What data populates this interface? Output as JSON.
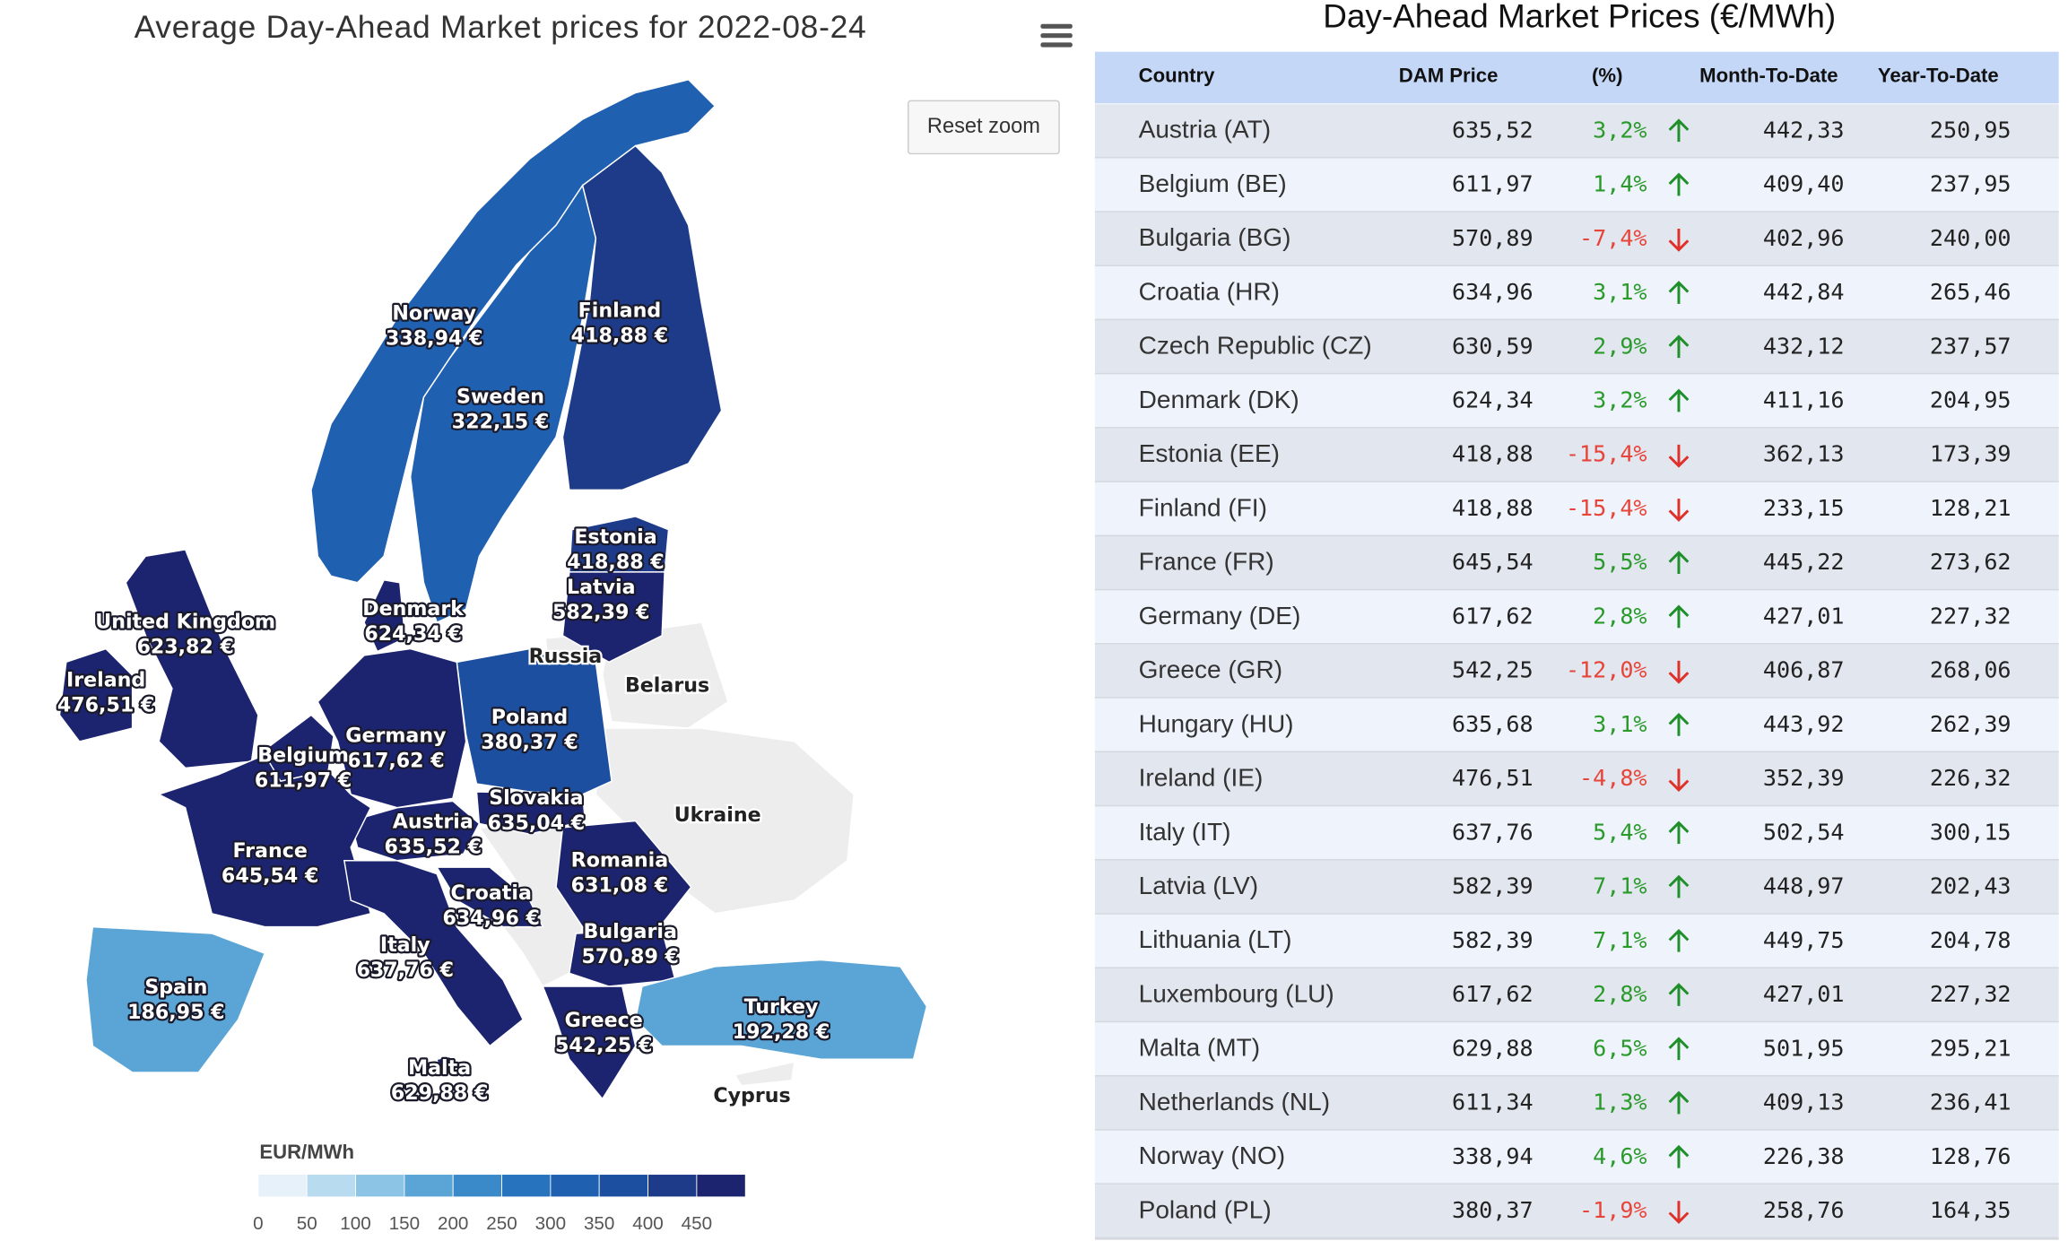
{
  "map": {
    "title": "Average Day-Ahead Market prices for 2022-08-24",
    "reset_button": "Reset zoom",
    "regions": [
      {
        "name": "Norway",
        "value": 338.94,
        "value_label": "338,94 €"
      },
      {
        "name": "Finland",
        "value": 418.88,
        "value_label": "418,88 €"
      },
      {
        "name": "Sweden",
        "value": 322.15,
        "value_label": "322,15 €"
      },
      {
        "name": "Estonia",
        "value": 418.88,
        "value_label": "418,88 €"
      },
      {
        "name": "Latvia",
        "value": 582.39,
        "value_label": "582,39 €"
      },
      {
        "name": "Denmark",
        "value": 624.34,
        "value_label": "624,34 €"
      },
      {
        "name": "United Kingdom",
        "value": 623.82,
        "value_label": "623,82 €"
      },
      {
        "name": "Ireland",
        "value": 476.51,
        "value_label": "476,51 €"
      },
      {
        "name": "Poland",
        "value": 380.37,
        "value_label": "380,37 €"
      },
      {
        "name": "Germany",
        "value": 617.62,
        "value_label": "617,62 €"
      },
      {
        "name": "Belgium",
        "value": 611.97,
        "value_label": "611,97 €"
      },
      {
        "name": "Slovakia",
        "value": 635.04,
        "value_label": "635,04 €"
      },
      {
        "name": "Austria",
        "value": 635.52,
        "value_label": "635,52 €"
      },
      {
        "name": "France",
        "value": 645.54,
        "value_label": "645,54 €"
      },
      {
        "name": "Romania",
        "value": 631.08,
        "value_label": "631,08 €"
      },
      {
        "name": "Croatia",
        "value": 634.96,
        "value_label": "634,96 €"
      },
      {
        "name": "Italy",
        "value": 637.76,
        "value_label": "637,76 €"
      },
      {
        "name": "Bulgaria",
        "value": 570.89,
        "value_label": "570,89 €"
      },
      {
        "name": "Spain",
        "value": 186.95,
        "value_label": "186,95 €"
      },
      {
        "name": "Turkey",
        "value": 192.28,
        "value_label": "192,28 €"
      },
      {
        "name": "Greece",
        "value": 542.25,
        "value_label": "542,25 €"
      },
      {
        "name": "Malta",
        "value": 629.88,
        "value_label": "629,88 €"
      }
    ],
    "other_regions": [
      "Russia",
      "Belarus",
      "Ukraine",
      "Cyprus"
    ],
    "legend": {
      "title": "EUR/MWh",
      "lim": [
        0,
        500
      ],
      "ticks": [
        0,
        50,
        100,
        150,
        200,
        250,
        300,
        350,
        400,
        450
      ],
      "colors": [
        "#e6f1fa",
        "#b8dbf0",
        "#8cc4e6",
        "#5aa5d6",
        "#3a8ac9",
        "#2873bd",
        "#1f60b0",
        "#1d4fa0",
        "#1e3b8a",
        "#1c2470"
      ]
    }
  },
  "table": {
    "title": "Day-Ahead Market Prices (€/MWh)",
    "columns": [
      "Country",
      "DAM Price",
      "(%)",
      "Month-To-Date",
      "Year-To-Date"
    ],
    "rows": [
      [
        "Austria (AT)",
        "635,52",
        "3,2%",
        "442,33",
        "250,95"
      ],
      [
        "Belgium (BE)",
        "611,97",
        "1,4%",
        "409,40",
        "237,95"
      ],
      [
        "Bulgaria (BG)",
        "570,89",
        "-7,4%",
        "402,96",
        "240,00"
      ],
      [
        "Croatia (HR)",
        "634,96",
        "3,1%",
        "442,84",
        "265,46"
      ],
      [
        "Czech Republic (CZ)",
        "630,59",
        "2,9%",
        "432,12",
        "237,57"
      ],
      [
        "Denmark (DK)",
        "624,34",
        "3,2%",
        "411,16",
        "204,95"
      ],
      [
        "Estonia (EE)",
        "418,88",
        "-15,4%",
        "362,13",
        "173,39"
      ],
      [
        "Finland (FI)",
        "418,88",
        "-15,4%",
        "233,15",
        "128,21"
      ],
      [
        "France (FR)",
        "645,54",
        "5,5%",
        "445,22",
        "273,62"
      ],
      [
        "Germany (DE)",
        "617,62",
        "2,8%",
        "427,01",
        "227,32"
      ],
      [
        "Greece (GR)",
        "542,25",
        "-12,0%",
        "406,87",
        "268,06"
      ],
      [
        "Hungary (HU)",
        "635,68",
        "3,1%",
        "443,92",
        "262,39"
      ],
      [
        "Ireland (IE)",
        "476,51",
        "-4,8%",
        "352,39",
        "226,32"
      ],
      [
        "Italy (IT)",
        "637,76",
        "5,4%",
        "502,54",
        "300,15"
      ],
      [
        "Latvia (LV)",
        "582,39",
        "7,1%",
        "448,97",
        "202,43"
      ],
      [
        "Lithuania (LT)",
        "582,39",
        "7,1%",
        "449,75",
        "204,78"
      ],
      [
        "Luxembourg (LU)",
        "617,62",
        "2,8%",
        "427,01",
        "227,32"
      ],
      [
        "Malta (MT)",
        "629,88",
        "6,5%",
        "501,95",
        "295,21"
      ],
      [
        "Netherlands (NL)",
        "611,34",
        "1,3%",
        "409,13",
        "236,41"
      ],
      [
        "Norway (NO)",
        "338,94",
        "4,6%",
        "226,38",
        "128,76"
      ],
      [
        "Poland (PL)",
        "380,37",
        "-1,9%",
        "258,76",
        "164,35"
      ]
    ]
  }
}
